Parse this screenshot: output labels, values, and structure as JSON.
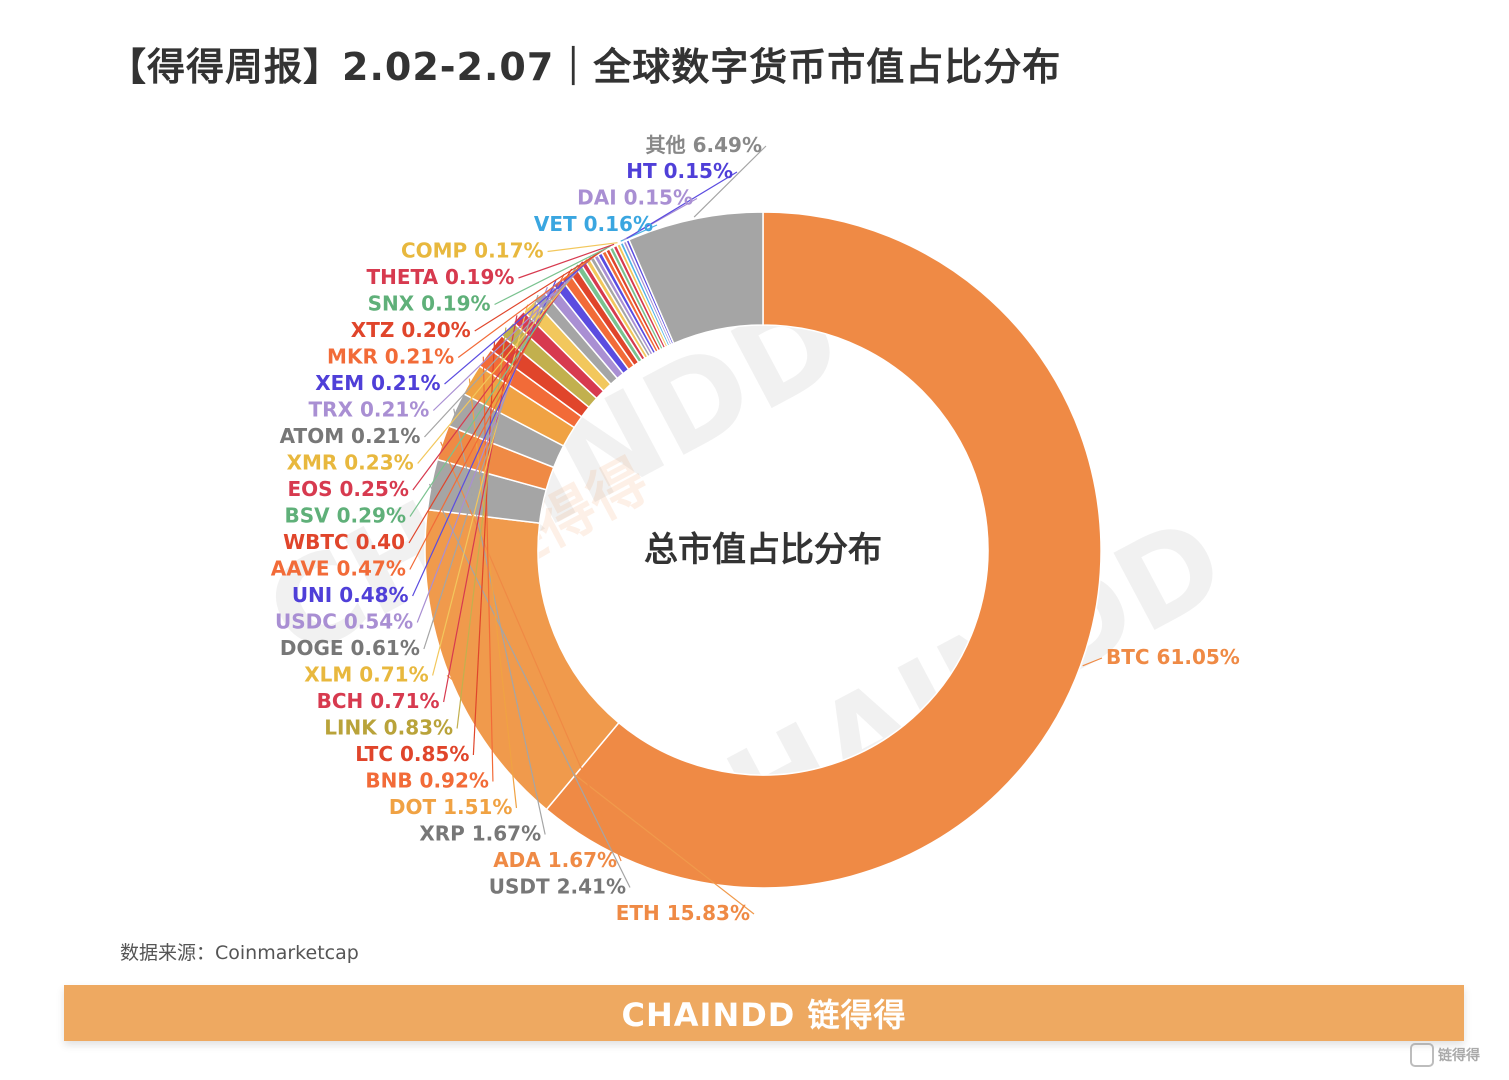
{
  "title": "【得得周报】2.02-2.07｜全球数字货币市值占比分布",
  "source": "数据来源：Coinmarketcap",
  "footer": {
    "brand": "CHAINDD 链得得"
  },
  "corner_logo_text": "链得得",
  "watermark": {
    "text_large": "CHAINDD",
    "text_cn": "链得得"
  },
  "chart_data": {
    "type": "pie",
    "title": "",
    "center_label": "总市值占比分布",
    "slices": [
      {
        "name": "BTC",
        "label": "BTC 61.05%",
        "value": 61.05,
        "color": "#ef8a45",
        "text_color": "#ef8a45"
      },
      {
        "name": "ETH",
        "label": "ETH 15.83%",
        "value": 15.83,
        "color": "#f09a4c",
        "text_color": "#ef8a45"
      },
      {
        "name": "USDT",
        "label": "USDT 2.41%",
        "value": 2.41,
        "color": "#a5a5a5",
        "text_color": "#777777"
      },
      {
        "name": "ADA",
        "label": "ADA 1.67%",
        "value": 1.67,
        "color": "#ef8a45",
        "text_color": "#ef8a45"
      },
      {
        "name": "XRP",
        "label": "XRP 1.67%",
        "value": 1.67,
        "color": "#a5a5a5",
        "text_color": "#777777"
      },
      {
        "name": "DOT",
        "label": "DOT 1.51%",
        "value": 1.51,
        "color": "#f0a243",
        "text_color": "#f0a243"
      },
      {
        "name": "BNB",
        "label": "BNB 0.92%",
        "value": 0.92,
        "color": "#f26b38",
        "text_color": "#f26b38"
      },
      {
        "name": "LTC",
        "label": "LTC 0.85%",
        "value": 0.85,
        "color": "#e0452b",
        "text_color": "#e0452b"
      },
      {
        "name": "LINK",
        "label": "LINK 0.83%",
        "value": 0.83,
        "color": "#c2b04e",
        "text_color": "#b9a33a"
      },
      {
        "name": "BCH",
        "label": "BCH 0.71%",
        "value": 0.71,
        "color": "#d73a4f",
        "text_color": "#d73a4f"
      },
      {
        "name": "XLM",
        "label": "XLM 0.71%",
        "value": 0.71,
        "color": "#f2c75c",
        "text_color": "#e8b83e"
      },
      {
        "name": "DOGE",
        "label": "DOGE 0.61%",
        "value": 0.61,
        "color": "#a5a5a5",
        "text_color": "#777777"
      },
      {
        "name": "USDC",
        "label": "USDC 0.54%",
        "value": 0.54,
        "color": "#a98fd3",
        "text_color": "#a98fd3"
      },
      {
        "name": "UNI",
        "label": "UNI 0.48%",
        "value": 0.48,
        "color": "#5b4ce0",
        "text_color": "#4f3fd8"
      },
      {
        "name": "AAVE",
        "label": "AAVE 0.47%",
        "value": 0.47,
        "color": "#f26b38",
        "text_color": "#f26b38"
      },
      {
        "name": "WBTC",
        "label": "WBTC 0.40",
        "value": 0.4,
        "color": "#e0452b",
        "text_color": "#e0452b"
      },
      {
        "name": "BSV",
        "label": "BSV 0.29%",
        "value": 0.29,
        "color": "#7ac28f",
        "text_color": "#5fb079"
      },
      {
        "name": "EOS",
        "label": "EOS 0.25%",
        "value": 0.25,
        "color": "#d73a4f",
        "text_color": "#d73a4f"
      },
      {
        "name": "XMR",
        "label": "XMR 0.23%",
        "value": 0.23,
        "color": "#f2c75c",
        "text_color": "#e8b83e"
      },
      {
        "name": "ATOM",
        "label": "ATOM 0.21%",
        "value": 0.21,
        "color": "#a5a5a5",
        "text_color": "#777777"
      },
      {
        "name": "TRX",
        "label": "TRX 0.21%",
        "value": 0.21,
        "color": "#a98fd3",
        "text_color": "#a98fd3"
      },
      {
        "name": "XEM",
        "label": "XEM 0.21%",
        "value": 0.21,
        "color": "#5b4ce0",
        "text_color": "#4f3fd8"
      },
      {
        "name": "MKR",
        "label": "MKR 0.21%",
        "value": 0.21,
        "color": "#f26b38",
        "text_color": "#f26b38"
      },
      {
        "name": "XTZ",
        "label": "XTZ 0.20%",
        "value": 0.2,
        "color": "#e0452b",
        "text_color": "#e0452b"
      },
      {
        "name": "SNX",
        "label": "SNX 0.19%",
        "value": 0.19,
        "color": "#7ac28f",
        "text_color": "#5fb079"
      },
      {
        "name": "THETA",
        "label": "THETA 0.19%",
        "value": 0.19,
        "color": "#d73a4f",
        "text_color": "#d73a4f"
      },
      {
        "name": "COMP",
        "label": "COMP 0.17%",
        "value": 0.17,
        "color": "#f2c75c",
        "text_color": "#e8b83e"
      },
      {
        "name": "VET",
        "label": "VET 0.16%",
        "value": 0.16,
        "color": "#4fb3e6",
        "text_color": "#3aa6e0"
      },
      {
        "name": "DAI",
        "label": "DAI 0.15%",
        "value": 0.15,
        "color": "#a98fd3",
        "text_color": "#a98fd3"
      },
      {
        "name": "HT",
        "label": "HT 0.15%",
        "value": 0.15,
        "color": "#5b4ce0",
        "text_color": "#4f3fd8"
      },
      {
        "name": "其他",
        "label": "其他 6.49%",
        "value": 6.49,
        "color": "#a5a5a5",
        "text_color": "#888888"
      }
    ]
  }
}
